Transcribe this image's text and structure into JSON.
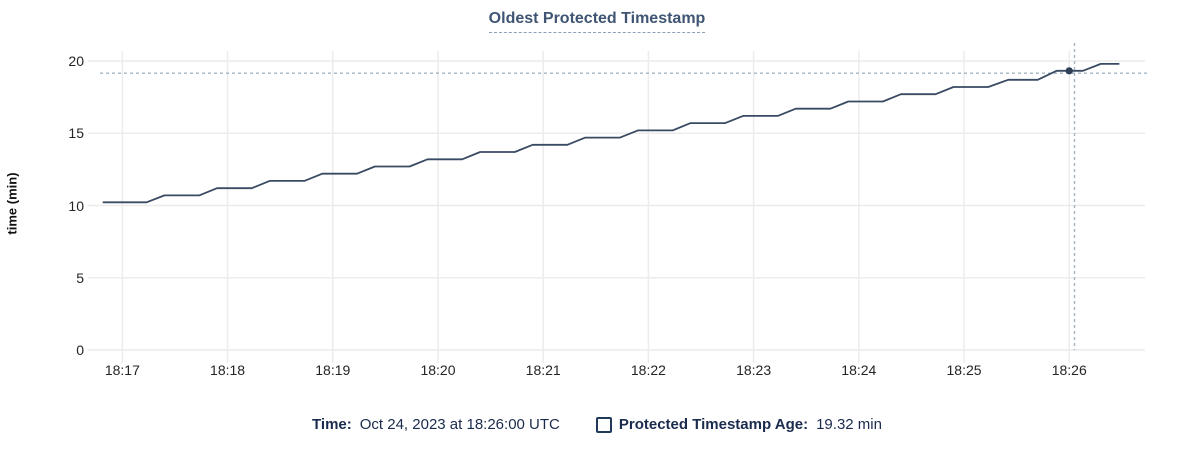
{
  "title": "Oldest Protected Timestamp",
  "colors": {
    "title": "#3f5573",
    "title_underline": "#8aa0b8",
    "axis_text": "#242424",
    "gridline": "#ececec",
    "line": "#394a63",
    "dot": "#2e3f58",
    "crosshair": "#a3b5c2",
    "legend_text": "#1b2b4d"
  },
  "y_axis": {
    "label": "time (min)",
    "ticks": [
      0,
      5,
      10,
      15,
      20
    ],
    "min": 0,
    "max": 20
  },
  "x_axis": {
    "tick_labels": [
      "18:17",
      "18:18",
      "18:19",
      "18:20",
      "18:21",
      "18:22",
      "18:23",
      "18:24",
      "18:25",
      "18:26"
    ],
    "min_offset": -0.26,
    "max_offset": 9.72
  },
  "chart_data": {
    "type": "line",
    "title": "Oldest Protected Timestamp",
    "xlabel": "",
    "ylabel": "time (min)",
    "ylim": [
      0,
      20
    ],
    "x_tick_labels": [
      "18:17",
      "18:18",
      "18:19",
      "18:20",
      "18:21",
      "18:22",
      "18:23",
      "18:24",
      "18:25",
      "18:26"
    ],
    "grid": true,
    "legend_position": "bottom",
    "series": [
      {
        "name": "Protected Timestamp Age",
        "note": "x = minutes after 18:17 UTC, y = age in minutes; stepped monotonically increasing line",
        "points": [
          [
            -0.18,
            10.22
          ],
          [
            0.23,
            10.22
          ],
          [
            0.4,
            10.7
          ],
          [
            0.73,
            10.7
          ],
          [
            0.9,
            11.2
          ],
          [
            1.23,
            11.2
          ],
          [
            1.4,
            11.7
          ],
          [
            1.73,
            11.7
          ],
          [
            1.9,
            12.2
          ],
          [
            2.23,
            12.2
          ],
          [
            2.4,
            12.7
          ],
          [
            2.73,
            12.7
          ],
          [
            2.9,
            13.2
          ],
          [
            3.23,
            13.2
          ],
          [
            3.4,
            13.7
          ],
          [
            3.73,
            13.7
          ],
          [
            3.9,
            14.2
          ],
          [
            4.23,
            14.2
          ],
          [
            4.4,
            14.7
          ],
          [
            4.73,
            14.7
          ],
          [
            4.9,
            15.2
          ],
          [
            5.23,
            15.2
          ],
          [
            5.4,
            15.7
          ],
          [
            5.73,
            15.7
          ],
          [
            5.9,
            16.2
          ],
          [
            6.23,
            16.2
          ],
          [
            6.4,
            16.7
          ],
          [
            6.73,
            16.7
          ],
          [
            6.9,
            17.2
          ],
          [
            7.23,
            17.2
          ],
          [
            7.4,
            17.7
          ],
          [
            7.73,
            17.7
          ],
          [
            7.9,
            18.2
          ],
          [
            8.23,
            18.2
          ],
          [
            8.42,
            18.7
          ],
          [
            8.7,
            18.7
          ],
          [
            8.88,
            19.32
          ],
          [
            9.13,
            19.32
          ],
          [
            9.3,
            19.8
          ],
          [
            9.47,
            19.8
          ]
        ]
      }
    ],
    "highlight_point": {
      "x": 9.0,
      "y": 19.32,
      "time": "18:26:00",
      "value_label": "19.32 min"
    },
    "crosshair": {
      "x": 9.05,
      "y": 19.16
    }
  },
  "legend": {
    "time_label": "Time:",
    "time_value": "Oct 24, 2023 at 18:26:00 UTC",
    "series_label": "Protected Timestamp Age:",
    "series_value": "19.32 min"
  }
}
